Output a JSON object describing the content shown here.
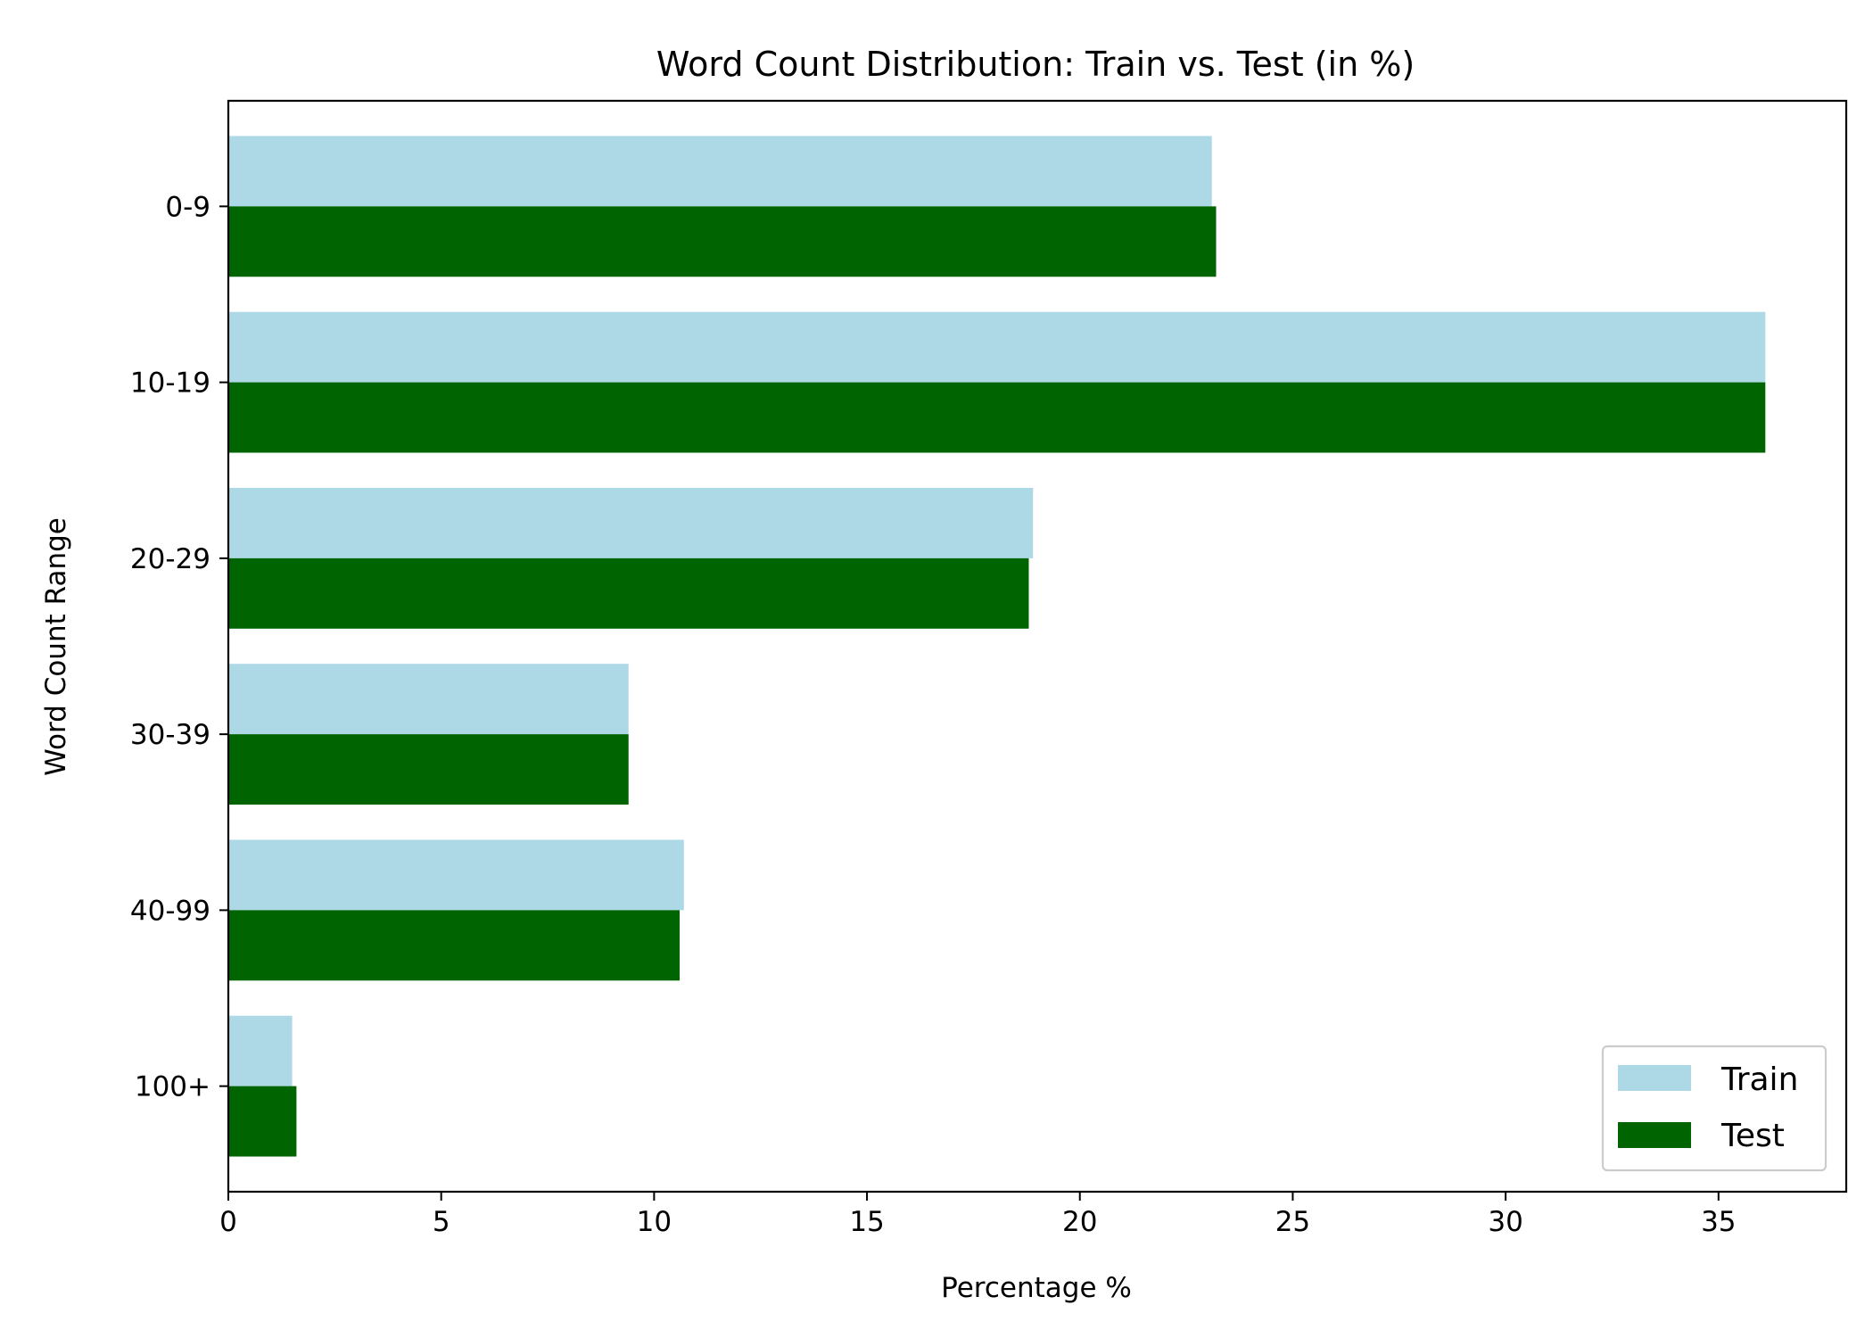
{
  "chart_data": {
    "type": "bar",
    "orientation": "horizontal",
    "title": "Word Count Distribution: Train vs. Test (in %)",
    "xlabel": "Percentage %",
    "ylabel": "Word Count Range",
    "xlim": [
      0,
      38
    ],
    "xticks": [
      0,
      5,
      10,
      15,
      20,
      25,
      30,
      35
    ],
    "categories": [
      "0-9",
      "10-19",
      "20-29",
      "30-39",
      "40-99",
      "100+"
    ],
    "series": [
      {
        "name": "Train",
        "color": "#add8e6",
        "values": [
          23.1,
          36.1,
          18.9,
          9.4,
          10.7,
          1.5
        ]
      },
      {
        "name": "Test",
        "color": "#006400",
        "values": [
          23.2,
          36.1,
          18.8,
          9.4,
          10.6,
          1.6
        ]
      }
    ],
    "grid": false,
    "legend": "lower-right"
  }
}
